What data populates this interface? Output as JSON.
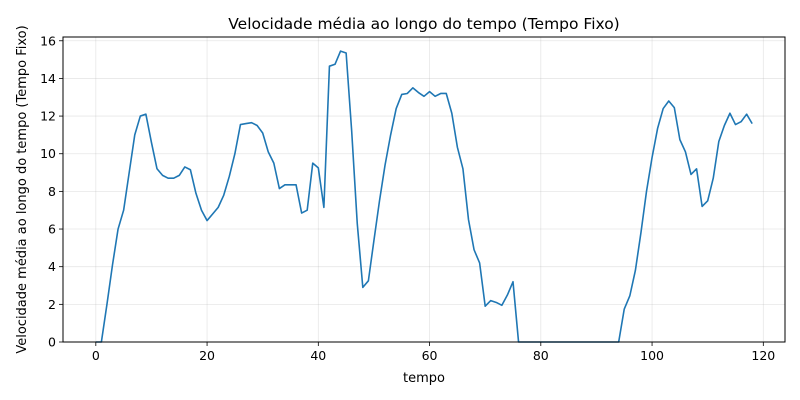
{
  "chart_data": {
    "type": "line",
    "title": "Velocidade média ao longo do tempo (Tempo Fixo)",
    "xlabel": "tempo",
    "ylabel": "Velocidade média ao longo do tempo (Tempo Fixo)",
    "xlim": [
      -5.9,
      123.9
    ],
    "ylim": [
      0,
      16.2
    ],
    "xticks": [
      0,
      20,
      40,
      60,
      80,
      100,
      120
    ],
    "yticks": [
      0,
      2,
      4,
      6,
      8,
      10,
      12,
      14,
      16
    ],
    "grid": true,
    "series": [
      {
        "color": "#1f77b4",
        "x": [
          0,
          1,
          2,
          3,
          4,
          5,
          6,
          7,
          8,
          9,
          10,
          11,
          12,
          13,
          14,
          15,
          16,
          17,
          18,
          19,
          20,
          21,
          22,
          23,
          24,
          25,
          26,
          27,
          28,
          29,
          30,
          31,
          32,
          33,
          34,
          35,
          36,
          37,
          38,
          39,
          40,
          41,
          42,
          43,
          44,
          45,
          46,
          47,
          48,
          49,
          50,
          51,
          52,
          53,
          54,
          55,
          56,
          57,
          58,
          59,
          60,
          61,
          62,
          63,
          64,
          65,
          66,
          67,
          68,
          69,
          70,
          71,
          72,
          73,
          74,
          75,
          76,
          77,
          78,
          79,
          80,
          81,
          82,
          83,
          84,
          85,
          86,
          87,
          88,
          89,
          90,
          91,
          92,
          93,
          94,
          95,
          96,
          97,
          98,
          99,
          100,
          101,
          102,
          103,
          104,
          105,
          106,
          107,
          108,
          109,
          110,
          111,
          112,
          113,
          114,
          115,
          116,
          117,
          118
        ],
        "y": [
          0,
          0,
          2.0,
          4.1,
          6.0,
          7.0,
          9.0,
          11.0,
          12.0,
          12.1,
          10.6,
          9.2,
          8.85,
          8.7,
          8.7,
          8.85,
          9.3,
          9.15,
          7.9,
          7.0,
          6.45,
          6.8,
          7.15,
          7.8,
          8.8,
          10.0,
          11.55,
          11.6,
          11.65,
          11.5,
          11.1,
          10.1,
          9.5,
          8.15,
          8.35,
          8.35,
          8.35,
          6.85,
          7.0,
          9.5,
          9.25,
          7.15,
          14.65,
          14.75,
          15.45,
          15.35,
          11.2,
          6.3,
          2.9,
          3.25,
          5.4,
          7.5,
          9.4,
          11.0,
          12.4,
          13.15,
          13.2,
          13.5,
          13.25,
          13.05,
          13.3,
          13.05,
          13.2,
          13.2,
          12.15,
          10.35,
          9.2,
          6.5,
          4.9,
          4.2,
          1.9,
          2.2,
          2.1,
          1.95,
          2.5,
          3.2,
          0,
          0,
          0,
          0,
          0,
          0,
          0,
          0,
          0,
          0,
          0,
          0,
          0,
          0,
          0,
          0,
          0,
          0,
          0,
          1.75,
          2.45,
          3.8,
          5.8,
          8.0,
          9.8,
          11.35,
          12.4,
          12.8,
          12.45,
          10.75,
          10.1,
          8.9,
          9.2,
          7.2,
          7.5,
          8.7,
          10.65,
          11.5,
          12.15,
          11.55,
          11.7,
          12.1,
          11.6
        ]
      }
    ]
  }
}
